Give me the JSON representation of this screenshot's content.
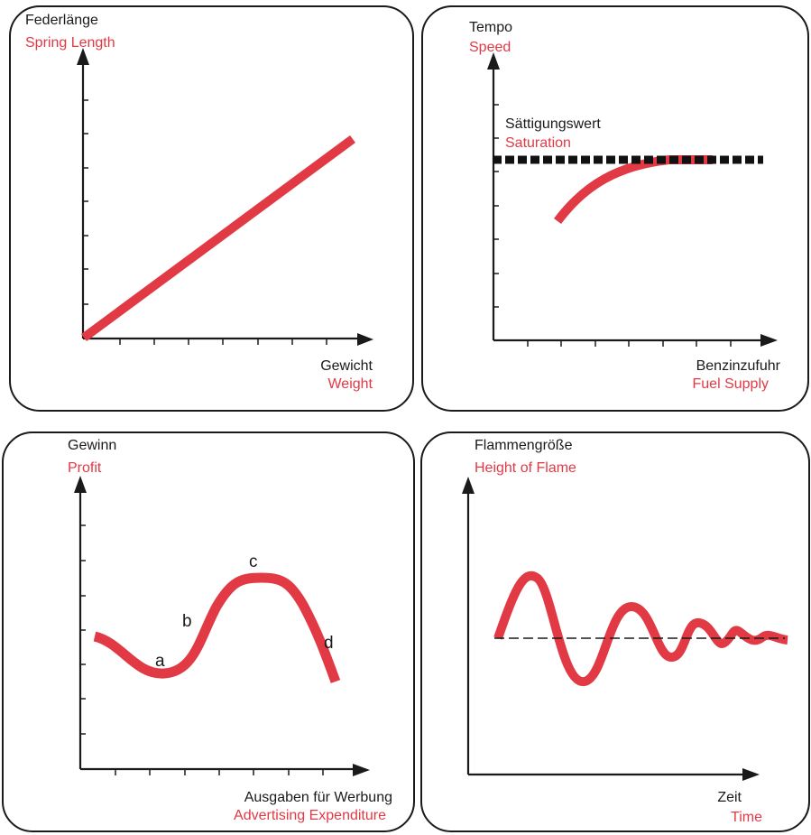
{
  "colors": {
    "german_text": "#1a1a1a",
    "english_text": "#e23a45",
    "curve": "#e23a45",
    "axis": "#1a1a1a"
  },
  "chart_data": [
    {
      "type": "line",
      "title": "",
      "ylabel": "Federlänge",
      "ylabel_en": "Spring Length",
      "xlabel": "Gewicht",
      "xlabel_en": "Weight",
      "series": [
        {
          "x": [
            0,
            1
          ],
          "y": [
            0,
            0.75
          ]
        }
      ]
    },
    {
      "type": "line",
      "title": "",
      "ylabel": "Tempo",
      "ylabel_en": "Speed",
      "xlabel": "Benzinzufuhr",
      "xlabel_en": "Fuel Supply",
      "reference_line": {
        "label": "Sättigungswert",
        "label_en": "Saturation",
        "y": 0.68,
        "style": "dashed"
      },
      "series": [
        {
          "x": [
            0.25,
            0.35,
            0.45,
            0.55,
            0.65
          ],
          "y": [
            0.42,
            0.56,
            0.64,
            0.67,
            0.68
          ]
        }
      ]
    },
    {
      "type": "line",
      "title": "",
      "ylabel": "Gewinn",
      "ylabel_en": "Profit",
      "xlabel": "Ausgaben für Werbung",
      "xlabel_en": "Advertising Expenditure",
      "annotations": [
        "a",
        "b",
        "c",
        "d"
      ],
      "series": [
        {
          "x": [
            0.04,
            0.29,
            0.52,
            0.73,
            0.94
          ],
          "y": [
            0.52,
            0.38,
            0.68,
            0.6,
            0.32
          ]
        }
      ]
    },
    {
      "type": "line",
      "title": "",
      "ylabel": "Flammengröße",
      "ylabel_en": "Height of Flame",
      "xlabel": "Zeit",
      "xlabel_en": "Time",
      "reference_line": {
        "y": 0.5,
        "style": "dashed"
      },
      "series": [
        {
          "description_points": [
            0.1,
            0.2,
            0.33,
            0.43,
            0.52,
            0.6,
            0.7,
            0.78,
            0.85
          ],
          "peaks": [
            0.71,
            0.25,
            0.63,
            0.42,
            0.58,
            0.45,
            0.55,
            0.47,
            0.52
          ]
        }
      ]
    }
  ]
}
